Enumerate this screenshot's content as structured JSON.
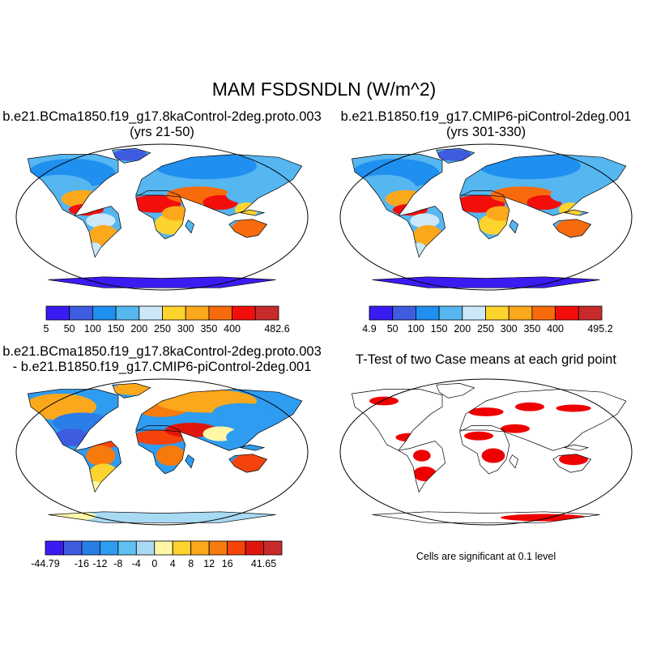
{
  "title": "MAM FSDSNDLN (W/m^2)",
  "panels": [
    {
      "id": "p1",
      "title_line1": "b.e21.BCma1850.f19_g17.8kaControl-2deg.proto.003",
      "title_line2": "(yrs 21-50)"
    },
    {
      "id": "p2",
      "title_line1": "b.e21.B1850.f19_g17.CMIP6-piControl-2deg.001",
      "title_line2": "(yrs 301-330)"
    },
    {
      "id": "p3",
      "title_line1": "b.e21.BCma1850.f19_g17.8kaControl-2deg.proto.003",
      "title_line2": "- b.e21.B1850.f19_g17.CMIP6-piControl-2deg.001"
    },
    {
      "id": "p4",
      "title_line1": "T-Test of two Case means at each grid point",
      "title_line2": ""
    }
  ],
  "significance_note": "Cells are significant at 0.1 level",
  "chart_data": [
    {
      "type": "heatmap",
      "panel": "p1",
      "projection": "Robinson",
      "colorbar": {
        "levels": [
          "5",
          "50",
          "100",
          "150",
          "200",
          "250",
          "300",
          "350",
          "400",
          "482.6"
        ],
        "colors": [
          "#3a1cf3",
          "#3d5ce0",
          "#1f8ff0",
          "#55b6f0",
          "#cce8f8",
          "#fdd32e",
          "#fca81c",
          "#f76b0c",
          "#f30e0c",
          "#c72b2b"
        ]
      }
    },
    {
      "type": "heatmap",
      "panel": "p2",
      "projection": "Robinson",
      "colorbar": {
        "levels": [
          "4.9",
          "50",
          "100",
          "150",
          "200",
          "250",
          "300",
          "350",
          "400",
          "495.2"
        ],
        "colors": [
          "#3a1cf3",
          "#3d5ce0",
          "#1f8ff0",
          "#55b6f0",
          "#cce8f8",
          "#fdd32e",
          "#fca81c",
          "#f76b0c",
          "#f30e0c",
          "#c72b2b"
        ]
      }
    },
    {
      "type": "heatmap",
      "panel": "p3",
      "projection": "Robinson",
      "colorbar": {
        "levels": [
          "-44.79",
          "-16",
          "-12",
          "-8",
          "-4",
          "0",
          "4",
          "8",
          "12",
          "16",
          "41.65"
        ],
        "label_slots": [
          0,
          2,
          3,
          4,
          5,
          6,
          7,
          8,
          9,
          10,
          12
        ],
        "colors": [
          "#3a1cf3",
          "#3d5ce0",
          "#2b7de8",
          "#2e9cf0",
          "#62bff2",
          "#a8daf4",
          "#fff6a6",
          "#fdd32e",
          "#fca81c",
          "#f77a0c",
          "#f4440c",
          "#e0160c",
          "#c72b2b"
        ]
      }
    },
    {
      "type": "heatmap",
      "panel": "p4",
      "projection": "Robinson",
      "significant_color": "#ee0000"
    }
  ]
}
